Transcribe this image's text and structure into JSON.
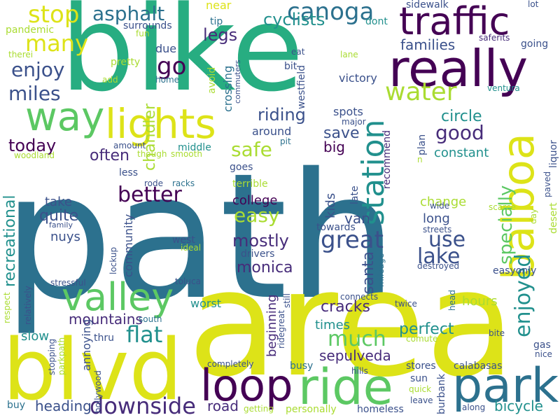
{
  "colors": {
    "background": "#ffffff",
    "palette": [
      "#440154",
      "#472c7a",
      "#3b518b",
      "#2c718e",
      "#21908d",
      "#27ad81",
      "#5cc863",
      "#aadc32",
      "#dde318"
    ]
  },
  "words": [
    {
      "id": "w1",
      "text": "path",
      "color": "#2c718e"
    },
    {
      "id": "w2",
      "text": "area",
      "color": "#dde318"
    },
    {
      "id": "w3",
      "text": "bike",
      "color": "#27ad81"
    },
    {
      "id": "w4",
      "text": "blvd",
      "color": "#dde318"
    },
    {
      "id": "w5",
      "text": "ride",
      "color": "#5cc863"
    },
    {
      "id": "w6",
      "text": "really",
      "color": "#440154"
    },
    {
      "id": "w7",
      "text": "park",
      "color": "#2c718e"
    },
    {
      "id": "w8",
      "text": "loop",
      "color": "#440154"
    },
    {
      "id": "w9",
      "text": "balboa",
      "color": "#dde318"
    },
    {
      "id": "w10",
      "text": "traffic",
      "color": "#440154"
    },
    {
      "id": "w11",
      "text": "lights",
      "color": "#dde318"
    },
    {
      "id": "w12",
      "text": "way",
      "color": "#5cc863"
    },
    {
      "id": "w13",
      "text": "valley",
      "color": "#5cc863"
    },
    {
      "id": "w14",
      "text": "water",
      "color": "#aadc32"
    },
    {
      "id": "w15",
      "text": "station",
      "color": "#21908d"
    },
    {
      "id": "w16",
      "text": "downside",
      "color": "#472c7a"
    },
    {
      "id": "w17",
      "text": "canoga",
      "color": "#2c718e"
    },
    {
      "id": "w18",
      "text": "great",
      "color": "#3b518b"
    },
    {
      "id": "w19",
      "text": "flat",
      "color": "#21908d"
    },
    {
      "id": "w20",
      "text": "much",
      "color": "#5cc863"
    },
    {
      "id": "w21",
      "text": "enjoyed",
      "color": "#21908d"
    },
    {
      "id": "w22",
      "text": "specially",
      "color": "#5cc863"
    },
    {
      "id": "w23",
      "text": "lake",
      "color": "#3b518b"
    },
    {
      "id": "w24",
      "text": "use",
      "color": "#3b518b"
    },
    {
      "id": "w25",
      "text": "better",
      "color": "#440154"
    },
    {
      "id": "w26",
      "text": "easy",
      "color": "#aadc32"
    },
    {
      "id": "w27",
      "text": "safe",
      "color": "#aadc32"
    },
    {
      "id": "w28",
      "text": "stop",
      "color": "#dde318"
    },
    {
      "id": "w29",
      "text": "many",
      "color": "#dde318"
    },
    {
      "id": "w30",
      "text": "enjoy",
      "color": "#3b518b"
    },
    {
      "id": "w31",
      "text": "asphalt",
      "color": "#2c718e"
    },
    {
      "id": "w32",
      "text": "go",
      "color": "#440154"
    },
    {
      "id": "w33",
      "text": "riding",
      "color": "#3b518b"
    },
    {
      "id": "w34",
      "text": "good",
      "color": "#472c7a"
    },
    {
      "id": "w35",
      "text": "circle",
      "color": "#21908d"
    },
    {
      "id": "w36",
      "text": "mostly",
      "color": "#472c7a"
    },
    {
      "id": "w37",
      "text": "mountains",
      "color": "#472c7a"
    },
    {
      "id": "w38",
      "text": "cracks",
      "color": "#472c7a"
    },
    {
      "id": "w39",
      "text": "santa",
      "color": "#3b518b"
    },
    {
      "id": "w40",
      "text": "monica",
      "color": "#472c7a"
    },
    {
      "id": "w41",
      "text": "miles",
      "color": "#3b518b"
    },
    {
      "id": "w42",
      "text": "today",
      "color": "#440154"
    },
    {
      "id": "w43",
      "text": "chandler",
      "color": "#aadc32"
    },
    {
      "id": "w44",
      "text": "legs",
      "color": "#472c7a"
    },
    {
      "id": "w45",
      "text": "cyclists",
      "color": "#21908d"
    },
    {
      "id": "w46",
      "text": "families",
      "color": "#3b518b"
    },
    {
      "id": "w47",
      "text": "often",
      "color": "#472c7a"
    },
    {
      "id": "w48",
      "text": "save",
      "color": "#3b518b"
    },
    {
      "id": "w49",
      "text": "big",
      "color": "#440154"
    },
    {
      "id": "w50",
      "text": "constant",
      "color": "#21908d"
    },
    {
      "id": "w51",
      "text": "perfect",
      "color": "#21908d"
    },
    {
      "id": "w52",
      "text": "bicycle",
      "color": "#21908d"
    },
    {
      "id": "w53",
      "text": "heading",
      "color": "#3b518b"
    },
    {
      "id": "w54",
      "text": "road",
      "color": "#472c7a"
    },
    {
      "id": "w55",
      "text": "recreational",
      "color": "#21908d"
    },
    {
      "id": "w56",
      "text": "quite",
      "color": "#3b518b"
    },
    {
      "id": "w57",
      "text": "take",
      "color": "#3b518b"
    },
    {
      "id": "w58",
      "text": "nuys",
      "color": "#3b518b"
    },
    {
      "id": "w59",
      "text": "kids",
      "color": "#3b518b"
    },
    {
      "id": "w60",
      "text": "van",
      "color": "#3b518b"
    },
    {
      "id": "w61",
      "text": "long",
      "color": "#3b518b"
    },
    {
      "id": "w62",
      "text": "change",
      "color": "#aadc32"
    },
    {
      "id": "w63",
      "text": "college",
      "color": "#440154"
    },
    {
      "id": "w64",
      "text": "community",
      "color": "#3b518b"
    },
    {
      "id": "w65",
      "text": "beginning",
      "color": "#472c7a"
    },
    {
      "id": "w66",
      "text": "sepulveda",
      "color": "#472c7a"
    },
    {
      "id": "w67",
      "text": "hours",
      "color": "#aadc32"
    },
    {
      "id": "w68",
      "text": "times",
      "color": "#21908d"
    },
    {
      "id": "w69",
      "text": "slow",
      "color": "#21908d"
    },
    {
      "id": "w70",
      "text": "worst",
      "color": "#21908d"
    },
    {
      "id": "w71",
      "text": "annoying",
      "color": "#3b518b"
    },
    {
      "id": "w72",
      "text": "crossing",
      "color": "#2c718e"
    },
    {
      "id": "w73",
      "text": "pandemic",
      "color": "#aadc32"
    },
    {
      "id": "w74",
      "text": "surrounds",
      "color": "#3b518b"
    },
    {
      "id": "w75",
      "text": "near",
      "color": "#dde318"
    },
    {
      "id": "w76",
      "text": "tip",
      "color": "#2c718e"
    },
    {
      "id": "w77",
      "text": "dont",
      "color": "#21908d"
    },
    {
      "id": "w78",
      "text": "sidewalk",
      "color": "#3b518b"
    },
    {
      "id": "w79",
      "text": "lot",
      "color": "#3b518b"
    },
    {
      "id": "w80",
      "text": "saferits",
      "color": "#472c7a"
    },
    {
      "id": "w81",
      "text": "going",
      "color": "#3b518b"
    },
    {
      "id": "w82",
      "text": "due",
      "color": "#3b518b"
    },
    {
      "id": "w83",
      "text": "fun",
      "color": "#aadc32"
    },
    {
      "id": "w84",
      "text": "pretty",
      "color": "#aadc32"
    },
    {
      "id": "w85",
      "text": "add",
      "color": "#aadc32"
    },
    {
      "id": "w86",
      "text": "home",
      "color": "#2c718e"
    },
    {
      "id": "w87",
      "text": "avoid",
      "color": "#aadc32"
    },
    {
      "id": "w88",
      "text": "commuters",
      "color": "#3b518b"
    },
    {
      "id": "w89",
      "text": "westfield",
      "color": "#3b518b"
    },
    {
      "id": "w90",
      "text": "eat",
      "color": "#3b518b"
    },
    {
      "id": "w91",
      "text": "bit",
      "color": "#3b518b"
    },
    {
      "id": "w92",
      "text": "lane",
      "color": "#aadc32"
    },
    {
      "id": "w93",
      "text": "victory",
      "color": "#3b518b"
    },
    {
      "id": "w94",
      "text": "ventura",
      "color": "#21908d"
    },
    {
      "id": "w95",
      "text": "major",
      "color": "#3b518b"
    },
    {
      "id": "w96",
      "text": "spots",
      "color": "#3b518b"
    },
    {
      "id": "w97",
      "text": "around",
      "color": "#3b518b"
    },
    {
      "id": "w98",
      "text": "amount",
      "color": "#3b518b"
    },
    {
      "id": "w99",
      "text": "though",
      "color": "#aadc32"
    },
    {
      "id": "w100",
      "text": "smooth",
      "color": "#aadc32"
    },
    {
      "id": "w101",
      "text": "middle",
      "color": "#21908d"
    },
    {
      "id": "w102",
      "text": "woodland",
      "color": "#aadc32"
    },
    {
      "id": "w103",
      "text": "pit",
      "color": "#2c718e"
    },
    {
      "id": "w104",
      "text": "plan",
      "color": "#3b518b"
    },
    {
      "id": "w105",
      "text": "n",
      "color": "#aadc32"
    },
    {
      "id": "w106",
      "text": "recommend",
      "color": "#472c7a"
    },
    {
      "id": "w107",
      "text": "paved",
      "color": "#3b518b"
    },
    {
      "id": "w108",
      "text": "liquor",
      "color": "#3b518b"
    },
    {
      "id": "w109",
      "text": "day",
      "color": "#aadc32"
    },
    {
      "id": "w110",
      "text": "desert",
      "color": "#aadc32"
    },
    {
      "id": "w111",
      "text": "wide",
      "color": "#3b518b"
    },
    {
      "id": "w112",
      "text": "scarce",
      "color": "#aadc32"
    },
    {
      "id": "w113",
      "text": "streets",
      "color": "#3b518b"
    },
    {
      "id": "w114",
      "text": "less",
      "color": "#3b518b"
    },
    {
      "id": "w115",
      "text": "rode",
      "color": "#3b518b"
    },
    {
      "id": "w116",
      "text": "racks",
      "color": "#2c718e"
    },
    {
      "id": "w117",
      "text": "goes",
      "color": "#3b518b"
    },
    {
      "id": "w118",
      "text": "terrible",
      "color": "#aadc32"
    },
    {
      "id": "w119",
      "text": "late",
      "color": "#3b518b"
    },
    {
      "id": "w120",
      "text": "towards",
      "color": "#3b518b"
    },
    {
      "id": "w121",
      "text": "west",
      "color": "#3b518b"
    },
    {
      "id": "w122",
      "text": "ideal",
      "color": "#aadc32"
    },
    {
      "id": "w123",
      "text": "lockup",
      "color": "#3b518b"
    },
    {
      "id": "w124",
      "text": "drivers",
      "color": "#3b518b"
    },
    {
      "id": "w125",
      "text": "mileage",
      "color": "#2c718e"
    },
    {
      "id": "w126",
      "text": "destroyed",
      "color": "#3b518b"
    },
    {
      "id": "w127",
      "text": "easyonly",
      "color": "#3b518b"
    },
    {
      "id": "w128",
      "text": "family",
      "color": "#3b518b"
    },
    {
      "id": "w129",
      "text": "respect",
      "color": "#aadc32"
    },
    {
      "id": "w130",
      "text": "relatively",
      "color": "#3b518b"
    },
    {
      "id": "w131",
      "text": "stressful",
      "color": "#3b518b"
    },
    {
      "id": "w132",
      "text": "toluca",
      "color": "#3b518b"
    },
    {
      "id": "w133",
      "text": "south",
      "color": "#2c718e"
    },
    {
      "id": "w134",
      "text": "connects",
      "color": "#3b518b"
    },
    {
      "id": "w135",
      "text": "still",
      "color": "#3b518b"
    },
    {
      "id": "w136",
      "text": "ridegreat",
      "color": "#3b518b"
    },
    {
      "id": "w137",
      "text": "twice",
      "color": "#3b518b"
    },
    {
      "id": "w138",
      "text": "head",
      "color": "#2c718e"
    },
    {
      "id": "w139",
      "text": "bite",
      "color": "#3b518b"
    },
    {
      "id": "w140",
      "text": "comute",
      "color": "#aadc32"
    },
    {
      "id": "w141",
      "text": "gas",
      "color": "#3b518b"
    },
    {
      "id": "w142",
      "text": "nice",
      "color": "#3b518b"
    },
    {
      "id": "w143",
      "text": "thru",
      "color": "#3b518b"
    },
    {
      "id": "w144",
      "text": "stopping",
      "color": "#3b518b"
    },
    {
      "id": "w145",
      "text": "parkpath",
      "color": "#aadc32"
    },
    {
      "id": "w146",
      "text": "hollywood",
      "color": "#3b518b"
    },
    {
      "id": "w147",
      "text": "completely",
      "color": "#3b518b"
    },
    {
      "id": "w148",
      "text": "busy",
      "color": "#2c718e"
    },
    {
      "id": "w149",
      "text": "hills",
      "color": "#3b518b"
    },
    {
      "id": "w150",
      "text": "sun",
      "color": "#3b518b"
    },
    {
      "id": "w151",
      "text": "stores",
      "color": "#3b518b"
    },
    {
      "id": "w152",
      "text": "burbank",
      "color": "#3b518b"
    },
    {
      "id": "w153",
      "text": "calabasas",
      "color": "#3b518b"
    },
    {
      "id": "w154",
      "text": "quick",
      "color": "#aadc32"
    },
    {
      "id": "w155",
      "text": "leave",
      "color": "#3b518b"
    },
    {
      "id": "w156",
      "text": "along",
      "color": "#3b518b"
    },
    {
      "id": "w157",
      "text": "getting",
      "color": "#aadc32"
    },
    {
      "id": "w158",
      "text": "personally",
      "color": "#aadc32"
    },
    {
      "id": "w159",
      "text": "homeless",
      "color": "#3b518b"
    },
    {
      "id": "w160",
      "text": "buy",
      "color": "#2c718e"
    },
    {
      "id": "w161",
      "text": "therei",
      "color": "#aadc32"
    }
  ]
}
